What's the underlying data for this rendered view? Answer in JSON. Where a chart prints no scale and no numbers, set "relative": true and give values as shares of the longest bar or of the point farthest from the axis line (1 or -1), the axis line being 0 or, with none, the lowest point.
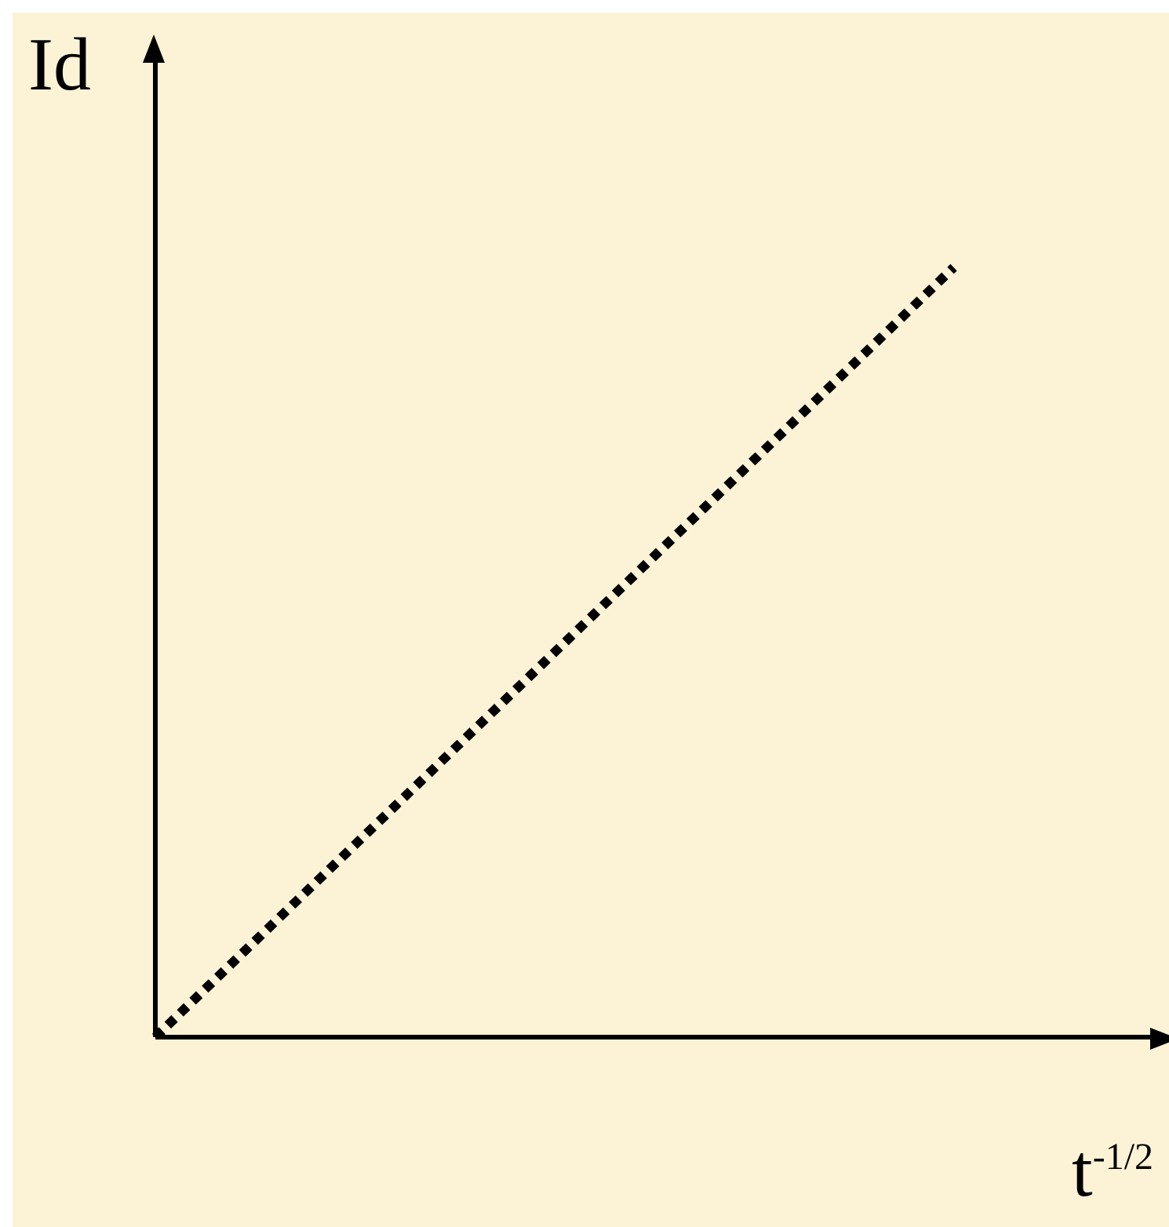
{
  "chart_data": {
    "type": "line",
    "relative": true,
    "ylabel": "Id",
    "xlabel": "t$^{-1/2}$",
    "categories": [
      null,
      null,
      null,
      null,
      null,
      null
    ],
    "series": [
      {
        "color": "#000000",
        "values": [
          0,
          0.25,
          0.5,
          0.75,
          1,
          null
        ]
      }
    ],
    "line_style": "dotted",
    "marker": "none",
    "grid": false
  }
}
